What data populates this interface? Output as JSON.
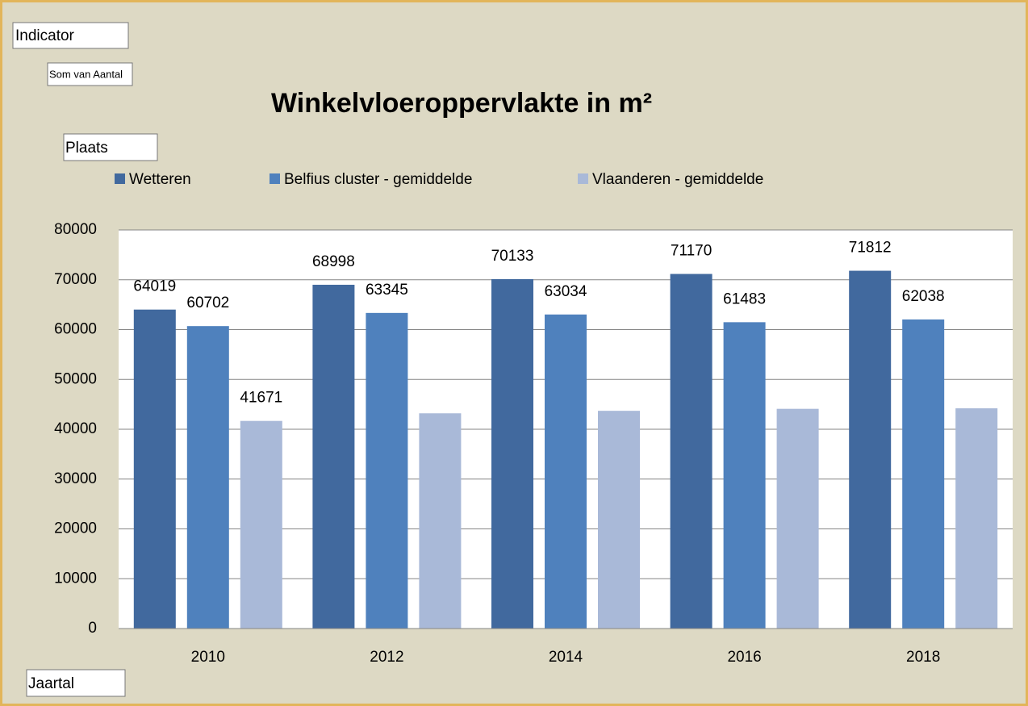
{
  "field_buttons": {
    "indicator": "Indicator",
    "measure": "Som van Aantal",
    "series_field": "Plaats",
    "axis_field": "Jaartal"
  },
  "chart_data": {
    "type": "bar",
    "title": "Winkelvloeroppervlakte in m²",
    "categories": [
      "2010",
      "2012",
      "2014",
      "2016",
      "2018"
    ],
    "series": [
      {
        "name": "Wetteren",
        "color": "#41699e",
        "values": [
          64019,
          68998,
          70133,
          71170,
          71812
        ]
      },
      {
        "name": "Belfius cluster - gemiddelde",
        "color": "#4f81bd",
        "values": [
          60702,
          63345,
          63034,
          61483,
          62038
        ]
      },
      {
        "name": "Vlaanderen - gemiddelde",
        "color": "#a9b9d8",
        "values": [
          41671,
          43200,
          43700,
          44100,
          44200
        ],
        "value_labels": [
          "41671",
          null,
          null,
          null,
          null
        ]
      }
    ],
    "ylim": [
      0,
      80000
    ],
    "yticks": [
      0,
      10000,
      20000,
      30000,
      40000,
      50000,
      60000,
      70000,
      80000
    ],
    "grid": true,
    "legend": "top"
  }
}
